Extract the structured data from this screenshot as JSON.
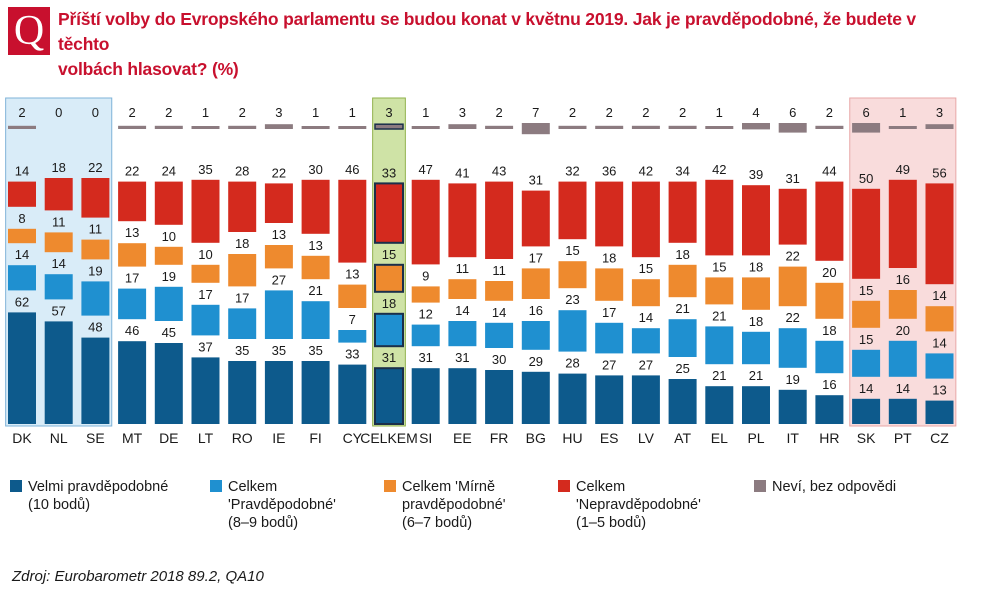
{
  "header": {
    "logo_letter": "Q",
    "title_line1": "Příští volby do Evropského parlamentu se budou konat v květnu 2019. Jak je pravděpodobné, že budete v těchto",
    "title_line2": "volbách hlasovat? (%)"
  },
  "chart_data": {
    "type": "bar",
    "title": "Příští volby do Evropského parlamentu se budou konat v květnu 2019. Jak je pravděpodobné, že budete v těchto volbách hlasovat? (%)",
    "categories": [
      "DK",
      "NL",
      "SE",
      "MT",
      "DE",
      "LT",
      "RO",
      "IE",
      "FI",
      "CY",
      "CELKEM",
      "SI",
      "EE",
      "FR",
      "BG",
      "HU",
      "ES",
      "LV",
      "AT",
      "EL",
      "PL",
      "IT",
      "HR",
      "SK",
      "PT",
      "CZ"
    ],
    "series": [
      {
        "name": "Velmi pravděpodobné (10 bodů)",
        "color": "#0d5a8c",
        "values": [
          62,
          57,
          48,
          46,
          45,
          37,
          35,
          35,
          35,
          33,
          31,
          31,
          31,
          30,
          29,
          28,
          27,
          27,
          25,
          21,
          21,
          19,
          16,
          14,
          14,
          13
        ]
      },
      {
        "name": "Celkem 'Pravděpodobné' (8–9 bodů)",
        "color": "#1f90d0",
        "values": [
          14,
          14,
          19,
          17,
          19,
          17,
          17,
          27,
          21,
          7,
          18,
          12,
          14,
          14,
          16,
          23,
          17,
          14,
          21,
          21,
          18,
          22,
          18,
          15,
          20,
          14
        ]
      },
      {
        "name": "Celkem 'Mírně pravděpodobné' (6–7 bodů)",
        "color": "#ee8a2e",
        "values": [
          8,
          11,
          11,
          13,
          10,
          10,
          18,
          13,
          13,
          13,
          15,
          9,
          11,
          11,
          17,
          15,
          18,
          15,
          18,
          15,
          18,
          22,
          20,
          15,
          16,
          14
        ]
      },
      {
        "name": "Celkem 'Nepravděpodobné' (1–5 bodů)",
        "color": "#d42a1e",
        "values": [
          14,
          18,
          22,
          22,
          24,
          35,
          28,
          22,
          30,
          46,
          33,
          47,
          41,
          43,
          31,
          32,
          36,
          42,
          34,
          42,
          39,
          31,
          44,
          50,
          49,
          56
        ]
      },
      {
        "name": "Neví, bez odpovědi",
        "color": "#8c7b80",
        "values": [
          2,
          0,
          0,
          2,
          2,
          1,
          2,
          3,
          1,
          1,
          3,
          1,
          3,
          2,
          7,
          2,
          2,
          2,
          2,
          1,
          4,
          6,
          2,
          6,
          1,
          3
        ]
      }
    ],
    "groups": [
      {
        "label": "highlight-blue",
        "categories": [
          "DK",
          "NL",
          "SE"
        ],
        "color": "#d9ecf8"
      },
      {
        "label": "highlight-green",
        "categories": [
          "CELKEM"
        ],
        "color": "#cfe3a6"
      },
      {
        "label": "highlight-pink",
        "categories": [
          "SK",
          "PT",
          "CZ"
        ],
        "color": "#f9dcdc"
      }
    ],
    "xlabel": "",
    "ylabel": "",
    "ylim": [
      0,
      100
    ],
    "legend_position": "bottom"
  },
  "legend": [
    {
      "line1": "Velmi pravděpodobné",
      "line2": "(10 bodů)",
      "line3": ""
    },
    {
      "line1": "Celkem",
      "line2": "'Pravděpodobné'",
      "line3": "(8–9 bodů)"
    },
    {
      "line1": "Celkem 'Mírně",
      "line2": "pravděpodobné'",
      "line3": "(6–7 bodů)"
    },
    {
      "line1": "Celkem",
      "line2": "'Nepravděpodobné'",
      "line3": "(1–5 bodů)"
    },
    {
      "line1": "Neví, bez odpovědi",
      "line2": "",
      "line3": ""
    }
  ],
  "source": "Zdroj: Eurobarometr 2018 89.2, QA10"
}
